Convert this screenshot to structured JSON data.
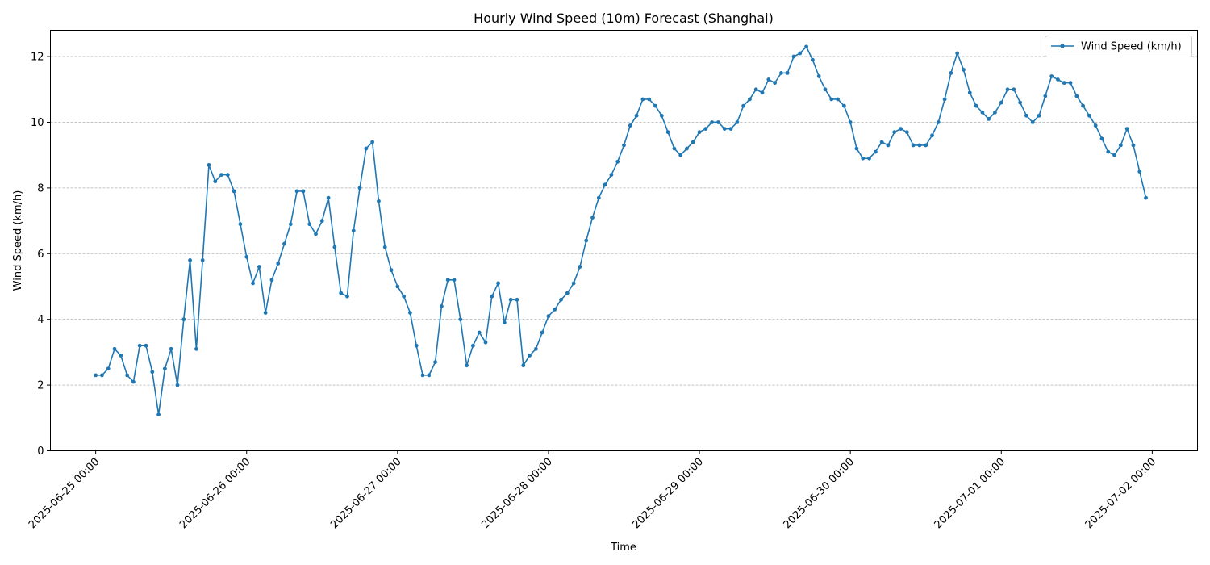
{
  "chart_data": {
    "type": "line",
    "title": "Hourly Wind Speed (10m) Forecast (Shanghai)",
    "xlabel": "Time",
    "ylabel": "Wind Speed (km/h)",
    "x_start": "2025-06-25 00:00",
    "x_step_hours": 1,
    "xlim": [
      "2025-06-24 16:48",
      "2025-07-02 07:12"
    ],
    "ylim": [
      0,
      12.8
    ],
    "x_ticks": [
      "2025-06-25 00:00",
      "2025-06-26 00:00",
      "2025-06-27 00:00",
      "2025-06-28 00:00",
      "2025-06-29 00:00",
      "2025-06-30 00:00",
      "2025-07-01 00:00",
      "2025-07-02 00:00"
    ],
    "y_ticks": [
      "0",
      "2",
      "4",
      "6",
      "8",
      "10",
      "12"
    ],
    "grid": "y-dashed",
    "legend_position": "top-right",
    "series": [
      {
        "name": "Wind Speed (km/h)",
        "color": "#1f77b4",
        "marker": "circle",
        "values": [
          2.3,
          2.3,
          2.5,
          3.1,
          2.9,
          2.3,
          2.1,
          3.2,
          3.2,
          2.4,
          1.1,
          2.5,
          3.1,
          2.0,
          4.0,
          5.8,
          3.1,
          5.8,
          8.7,
          8.2,
          8.4,
          8.4,
          7.9,
          6.9,
          5.9,
          5.1,
          5.6,
          4.2,
          5.2,
          5.7,
          6.3,
          6.9,
          7.9,
          7.9,
          6.9,
          6.6,
          7.0,
          7.7,
          6.2,
          4.8,
          4.7,
          6.7,
          8.0,
          9.2,
          9.4,
          7.6,
          6.2,
          5.5,
          5.0,
          4.7,
          4.2,
          3.2,
          2.3,
          2.3,
          2.7,
          4.4,
          5.2,
          5.2,
          4.0,
          2.6,
          3.2,
          3.6,
          3.3,
          4.7,
          5.1,
          3.9,
          4.6,
          4.6,
          2.6,
          2.9,
          3.1,
          3.6,
          4.1,
          4.3,
          4.6,
          4.8,
          5.1,
          5.6,
          6.4,
          7.1,
          7.7,
          8.1,
          8.4,
          8.8,
          9.3,
          9.9,
          10.2,
          10.7,
          10.7,
          10.5,
          10.2,
          9.7,
          9.2,
          9.0,
          9.2,
          9.4,
          9.7,
          9.8,
          10.0,
          10.0,
          9.8,
          9.8,
          10.0,
          10.5,
          10.7,
          11.0,
          10.9,
          11.3,
          11.2,
          11.5,
          11.5,
          12.0,
          12.1,
          12.3,
          11.9,
          11.4,
          11.0,
          10.7,
          10.7,
          10.5,
          10.0,
          9.2,
          8.9,
          8.9,
          9.1,
          9.4,
          9.3,
          9.7,
          9.8,
          9.7,
          9.3,
          9.3,
          9.3,
          9.6,
          10.0,
          10.7,
          11.5,
          12.1,
          11.6,
          10.9,
          10.5,
          10.3,
          10.1,
          10.3,
          10.6,
          11.0,
          11.0,
          10.6,
          10.2,
          10.0,
          10.2,
          10.8,
          11.4,
          11.3,
          11.2,
          11.2,
          10.8,
          10.5,
          10.2,
          9.9,
          9.5,
          9.1,
          9.0,
          9.3,
          9.8,
          9.3,
          8.5,
          7.7
        ]
      }
    ]
  }
}
